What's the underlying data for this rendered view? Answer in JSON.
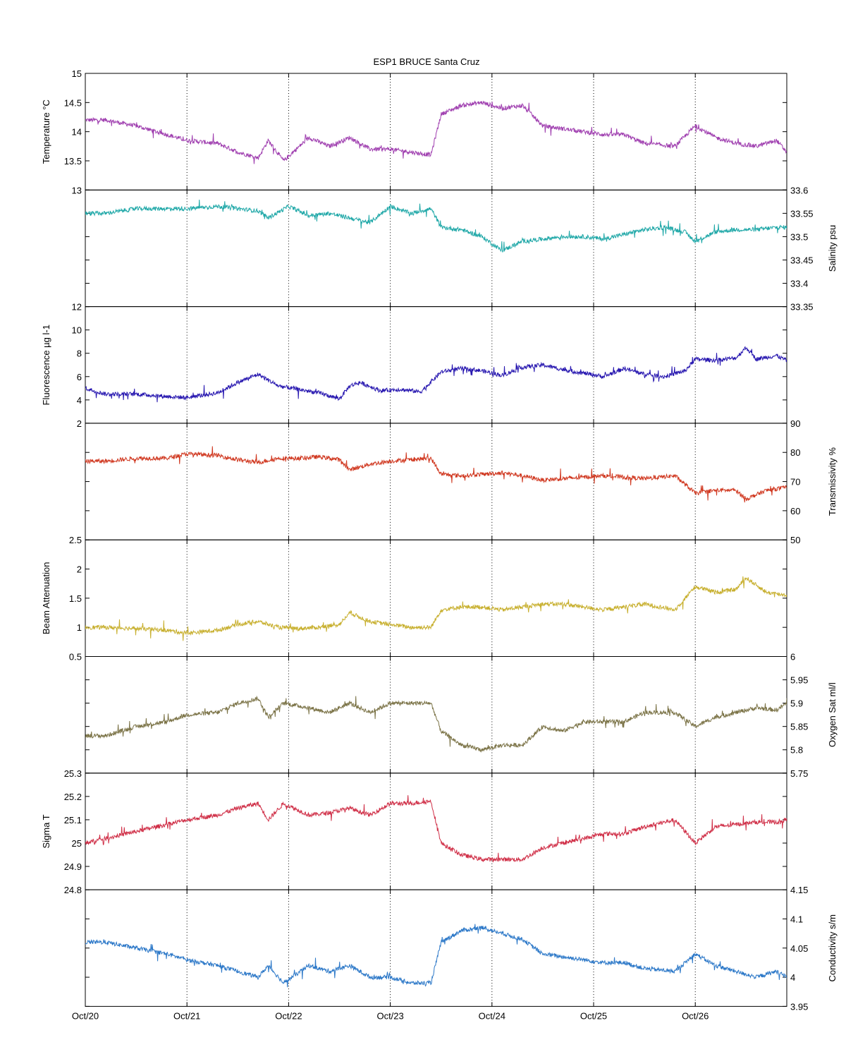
{
  "chart_data": {
    "title": "ESP1 BRUCE Santa Cruz",
    "type": "line",
    "x_ticks": [
      "Oct/20",
      "Oct/21",
      "Oct/22",
      "Oct/23",
      "Oct/24",
      "Oct/25",
      "Oct/26"
    ],
    "x_range_days": [
      20,
      26.9
    ],
    "grid": "vertical dotted at day boundaries",
    "panels": [
      {
        "ylabel": "Temperature °C",
        "side": "left",
        "color": "#a040b0",
        "ylim": [
          13,
          15
        ],
        "ticks": [
          "13",
          "13.5",
          "14",
          "14.5",
          "15"
        ],
        "x": [
          20.0,
          20.2,
          20.5,
          20.8,
          21.0,
          21.3,
          21.5,
          21.7,
          21.8,
          21.95,
          22.2,
          22.4,
          22.6,
          22.8,
          23.0,
          23.2,
          23.4,
          23.5,
          23.7,
          23.9,
          24.1,
          24.3,
          24.5,
          24.7,
          24.9,
          25.1,
          25.3,
          25.5,
          25.8,
          26.0,
          26.2,
          26.4,
          26.6,
          26.8,
          26.9
        ],
        "values": [
          14.2,
          14.2,
          14.1,
          13.95,
          13.85,
          13.8,
          13.65,
          13.55,
          13.85,
          13.5,
          13.9,
          13.75,
          13.9,
          13.7,
          13.7,
          13.65,
          13.6,
          14.3,
          14.45,
          14.5,
          14.4,
          14.45,
          14.1,
          14.05,
          14.0,
          13.95,
          13.95,
          13.8,
          13.75,
          14.1,
          13.9,
          13.8,
          13.75,
          13.85,
          13.65
        ]
      },
      {
        "ylabel": "Salinity psu",
        "side": "right",
        "color": "#20a8a8",
        "ylim": [
          33.35,
          33.6
        ],
        "ticks": [
          "33.35",
          "33.4",
          "33.45",
          "33.5",
          "33.55",
          "33.6"
        ],
        "x": [
          20.0,
          20.2,
          20.5,
          20.8,
          21.0,
          21.3,
          21.5,
          21.7,
          21.8,
          22.0,
          22.2,
          22.4,
          22.6,
          22.8,
          23.0,
          23.2,
          23.4,
          23.5,
          23.7,
          23.9,
          24.1,
          24.3,
          24.5,
          24.7,
          24.9,
          25.1,
          25.3,
          25.5,
          25.7,
          25.9,
          26.0,
          26.2,
          26.4,
          26.6,
          26.8,
          26.9
        ],
        "values": [
          33.55,
          33.55,
          33.56,
          33.56,
          33.56,
          33.565,
          33.56,
          33.555,
          33.54,
          33.565,
          33.545,
          33.55,
          33.54,
          33.53,
          33.565,
          33.55,
          33.56,
          33.52,
          33.515,
          33.5,
          33.47,
          33.49,
          33.495,
          33.5,
          33.5,
          33.495,
          33.505,
          33.515,
          33.52,
          33.51,
          33.49,
          33.51,
          33.515,
          33.515,
          33.52,
          33.52
        ]
      },
      {
        "ylabel": "Fluorescence µg l-1",
        "side": "left",
        "color": "#2818b0",
        "ylim": [
          2,
          12
        ],
        "ticks": [
          "2",
          "4",
          "6",
          "8",
          "10",
          "12"
        ],
        "x": [
          20.0,
          20.2,
          20.5,
          20.8,
          21.0,
          21.3,
          21.5,
          21.7,
          21.9,
          22.1,
          22.3,
          22.5,
          22.6,
          22.7,
          22.9,
          23.1,
          23.3,
          23.5,
          23.7,
          23.9,
          24.1,
          24.3,
          24.5,
          24.7,
          24.9,
          25.1,
          25.3,
          25.5,
          25.7,
          25.9,
          26.0,
          26.2,
          26.4,
          26.5,
          26.6,
          26.8,
          26.9
        ],
        "values": [
          5.0,
          4.5,
          4.5,
          4.3,
          4.2,
          4.6,
          5.5,
          6.2,
          5.2,
          4.9,
          4.6,
          4.1,
          5.2,
          5.5,
          4.8,
          4.9,
          4.7,
          6.4,
          6.7,
          6.5,
          6.1,
          6.8,
          7.0,
          6.6,
          6.3,
          6.0,
          6.7,
          6.2,
          6.0,
          6.5,
          7.5,
          7.4,
          7.6,
          8.5,
          7.5,
          7.8,
          7.4
        ]
      },
      {
        "ylabel": "Transmissivity %",
        "side": "right",
        "color": "#d03820",
        "ylim": [
          50,
          90
        ],
        "ticks": [
          "50",
          "60",
          "70",
          "80",
          "90"
        ],
        "x": [
          20.0,
          20.2,
          20.5,
          20.8,
          21.0,
          21.3,
          21.5,
          21.7,
          21.9,
          22.1,
          22.3,
          22.5,
          22.6,
          22.8,
          23.0,
          23.2,
          23.4,
          23.5,
          23.7,
          23.9,
          24.1,
          24.3,
          24.5,
          24.7,
          24.9,
          25.1,
          25.3,
          25.5,
          25.8,
          26.0,
          26.2,
          26.4,
          26.5,
          26.7,
          26.9
        ],
        "values": [
          77,
          77,
          78,
          78,
          79.5,
          79,
          77.5,
          76.5,
          78,
          78,
          78.5,
          77.5,
          74,
          76,
          77,
          77.5,
          78,
          72.5,
          72,
          72.5,
          73,
          72,
          70.5,
          71,
          71.5,
          72,
          71.5,
          71,
          72,
          66,
          67,
          67,
          64,
          67,
          68
        ]
      },
      {
        "ylabel": "Beam Attenuation",
        "side": "left",
        "color": "#c8b030",
        "ylim": [
          0.5,
          2.5
        ],
        "ticks": [
          "0.5",
          "1",
          "1.5",
          "2",
          "2.5"
        ],
        "x": [
          20.0,
          20.2,
          20.5,
          20.8,
          21.0,
          21.3,
          21.5,
          21.7,
          21.9,
          22.1,
          22.3,
          22.5,
          22.6,
          22.8,
          23.0,
          23.2,
          23.4,
          23.5,
          23.7,
          23.9,
          24.1,
          24.3,
          24.5,
          24.7,
          24.9,
          25.1,
          25.3,
          25.5,
          25.8,
          26.0,
          26.2,
          26.4,
          26.5,
          26.7,
          26.9
        ],
        "values": [
          1.0,
          1.0,
          0.98,
          0.95,
          0.9,
          0.95,
          1.05,
          1.1,
          1.0,
          0.98,
          1.0,
          1.05,
          1.25,
          1.1,
          1.05,
          1.0,
          1.0,
          1.3,
          1.35,
          1.35,
          1.3,
          1.35,
          1.4,
          1.4,
          1.35,
          1.3,
          1.35,
          1.4,
          1.3,
          1.7,
          1.6,
          1.65,
          1.85,
          1.6,
          1.55
        ]
      },
      {
        "ylabel": "Oxygen Sat ml/l",
        "side": "right",
        "color": "#7c7448",
        "ylim": [
          5.75,
          6
        ],
        "ticks": [
          "5.75",
          "5.8",
          "5.85",
          "5.9",
          "5.95",
          "6"
        ],
        "x": [
          20.0,
          20.2,
          20.5,
          20.8,
          21.0,
          21.3,
          21.5,
          21.7,
          21.8,
          21.95,
          22.2,
          22.4,
          22.6,
          22.8,
          23.0,
          23.2,
          23.4,
          23.5,
          23.7,
          23.9,
          24.1,
          24.3,
          24.5,
          24.7,
          24.9,
          25.1,
          25.3,
          25.5,
          25.8,
          26.0,
          26.2,
          26.4,
          26.6,
          26.8,
          26.9
        ],
        "values": [
          5.83,
          5.83,
          5.85,
          5.86,
          5.875,
          5.88,
          5.9,
          5.91,
          5.87,
          5.9,
          5.89,
          5.88,
          5.9,
          5.88,
          5.9,
          5.9,
          5.9,
          5.84,
          5.81,
          5.8,
          5.81,
          5.81,
          5.85,
          5.84,
          5.86,
          5.86,
          5.86,
          5.88,
          5.88,
          5.85,
          5.87,
          5.88,
          5.89,
          5.885,
          5.9
        ]
      },
      {
        "ylabel": "Sigma T",
        "side": "left",
        "color": "#d03048",
        "ylim": [
          24.8,
          25.3
        ],
        "ticks": [
          "24.8",
          "24.9",
          "25",
          "25.1",
          "25.2",
          "25.3"
        ],
        "x": [
          20.0,
          20.2,
          20.5,
          20.8,
          21.0,
          21.3,
          21.5,
          21.7,
          21.8,
          21.95,
          22.2,
          22.4,
          22.6,
          22.8,
          23.0,
          23.2,
          23.4,
          23.5,
          23.7,
          23.9,
          24.1,
          24.3,
          24.5,
          24.7,
          24.9,
          25.1,
          25.3,
          25.5,
          25.8,
          26.0,
          26.2,
          26.4,
          26.6,
          26.8,
          26.9
        ],
        "values": [
          25.0,
          25.02,
          25.05,
          25.08,
          25.1,
          25.12,
          25.15,
          25.17,
          25.1,
          25.17,
          25.12,
          25.13,
          25.15,
          25.12,
          25.17,
          25.17,
          25.18,
          25.0,
          24.95,
          24.93,
          24.93,
          24.93,
          24.98,
          25.0,
          25.02,
          25.04,
          25.04,
          25.07,
          25.1,
          25.0,
          25.07,
          25.08,
          25.09,
          25.09,
          25.1
        ]
      },
      {
        "ylabel": "Conductivity s/m",
        "side": "right",
        "color": "#2c78c8",
        "ylim": [
          3.95,
          4.15
        ],
        "ticks": [
          "3.95",
          "4",
          "4.05",
          "4.1",
          "4.15"
        ],
        "x": [
          20.0,
          20.2,
          20.5,
          20.8,
          21.0,
          21.3,
          21.5,
          21.7,
          21.8,
          21.95,
          22.2,
          22.4,
          22.6,
          22.8,
          23.0,
          23.2,
          23.4,
          23.5,
          23.7,
          23.9,
          24.1,
          24.3,
          24.5,
          24.7,
          24.9,
          25.1,
          25.3,
          25.5,
          25.8,
          26.0,
          26.2,
          26.4,
          26.6,
          26.8,
          26.9
        ],
        "values": [
          4.06,
          4.06,
          4.05,
          4.04,
          4.03,
          4.02,
          4.01,
          4.0,
          4.02,
          3.99,
          4.02,
          4.01,
          4.02,
          4.0,
          4.0,
          3.99,
          3.99,
          4.06,
          4.08,
          4.085,
          4.075,
          4.065,
          4.04,
          4.035,
          4.03,
          4.025,
          4.025,
          4.015,
          4.01,
          4.04,
          4.02,
          4.01,
          4.0,
          4.01,
          4.0
        ]
      }
    ]
  }
}
